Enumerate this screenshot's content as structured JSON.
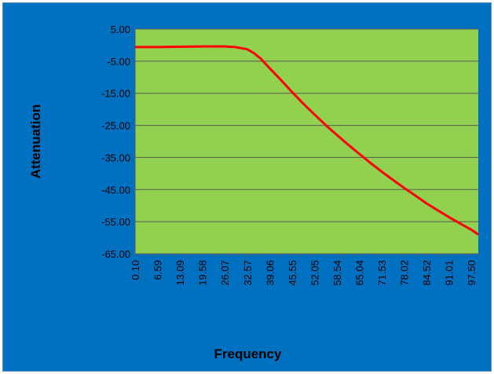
{
  "chart_data": {
    "type": "line",
    "title": "",
    "xlabel": "Frequency",
    "ylabel": "Attenuation",
    "ylim": [
      -65,
      5
    ],
    "xlim": [
      0.1,
      99.5
    ],
    "grid": true,
    "y_ticks": [
      "5.00",
      "-5.00",
      "-15.00",
      "-25.00",
      "-35.00",
      "-45.00",
      "-55.00",
      "-65.00"
    ],
    "x_ticks": [
      "0.10",
      "6.59",
      "13.09",
      "19.58",
      "26.07",
      "32.57",
      "39.06",
      "45.55",
      "52.05",
      "58.54",
      "65.04",
      "71.53",
      "78.02",
      "84.52",
      "91.01",
      "97.50"
    ],
    "series": [
      {
        "x": [
          0.1,
          6.59,
          13.09,
          19.58,
          26.07,
          29.0,
          32.57,
          34.5,
          36.5,
          39.06,
          42.3,
          45.55,
          48.8,
          52.05,
          55.3,
          58.54,
          61.8,
          65.04,
          68.3,
          71.53,
          74.8,
          78.02,
          81.3,
          84.52,
          87.8,
          91.01,
          94.3,
          97.5,
          99.5
        ],
        "y": [
          -0.6,
          -0.6,
          -0.5,
          -0.4,
          -0.4,
          -0.6,
          -1.3,
          -2.5,
          -4.2,
          -7.2,
          -10.8,
          -14.6,
          -18.2,
          -21.6,
          -24.9,
          -28.0,
          -31.0,
          -33.9,
          -36.7,
          -39.4,
          -42.0,
          -44.5,
          -46.9,
          -49.3,
          -51.5,
          -53.6,
          -55.6,
          -57.5,
          -59.0
        ]
      }
    ]
  },
  "colors": {
    "frame": "#0070c0",
    "plot_area": "#92d050",
    "line": "#ff0000",
    "grid": "#5a5a5a",
    "text": "#000000"
  }
}
